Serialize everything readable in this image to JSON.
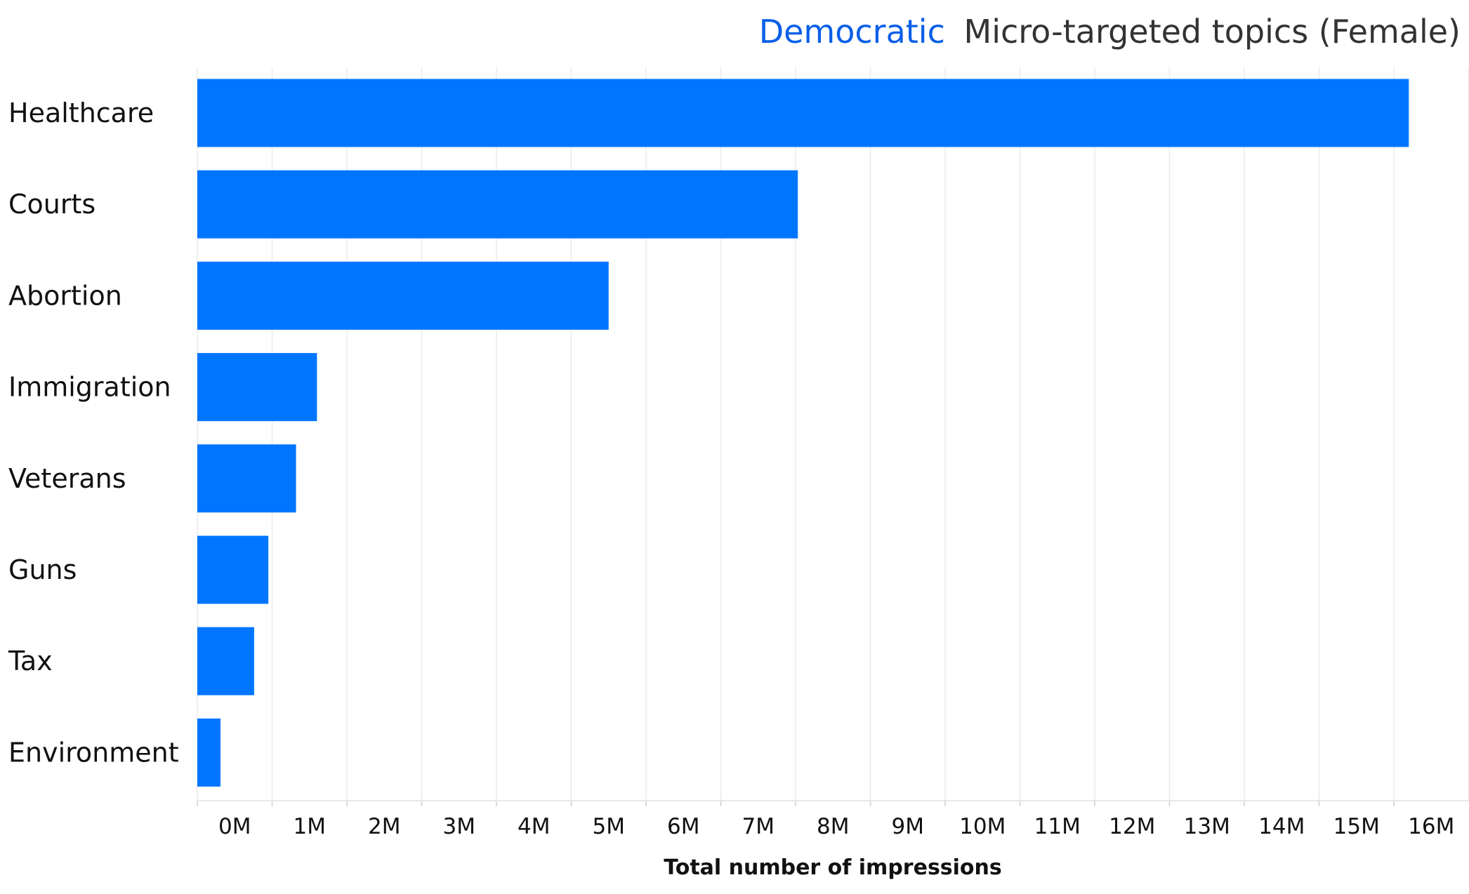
{
  "chart_data": {
    "type": "bar",
    "orientation": "horizontal",
    "title": {
      "highlight": "Democratic",
      "rest": "Micro-targeted topics (Female)"
    },
    "categories": [
      "Healthcare",
      "Courts",
      "Abortion",
      "Immigration",
      "Veterans",
      "Guns",
      "Tax",
      "Environment"
    ],
    "values": [
      16200000,
      8030000,
      5500000,
      1600000,
      1320000,
      950000,
      760000,
      310000
    ],
    "xlabel": "Total number of impressions",
    "ylabel": "",
    "xlim": [
      0,
      17000000
    ],
    "x_ticks": [
      0,
      1000000,
      2000000,
      3000000,
      4000000,
      5000000,
      6000000,
      7000000,
      8000000,
      9000000,
      10000000,
      11000000,
      12000000,
      13000000,
      14000000,
      15000000,
      16000000
    ],
    "x_tick_labels": [
      "0M",
      "1M",
      "2M",
      "3M",
      "4M",
      "5M",
      "6M",
      "7M",
      "8M",
      "9M",
      "10M",
      "11M",
      "12M",
      "13M",
      "14M",
      "15M",
      "16M"
    ],
    "grid": true,
    "legend": "none",
    "colors": {
      "bar": "#0075ff",
      "title_highlight": "#0a5fe8",
      "title_text": "#333333"
    }
  }
}
